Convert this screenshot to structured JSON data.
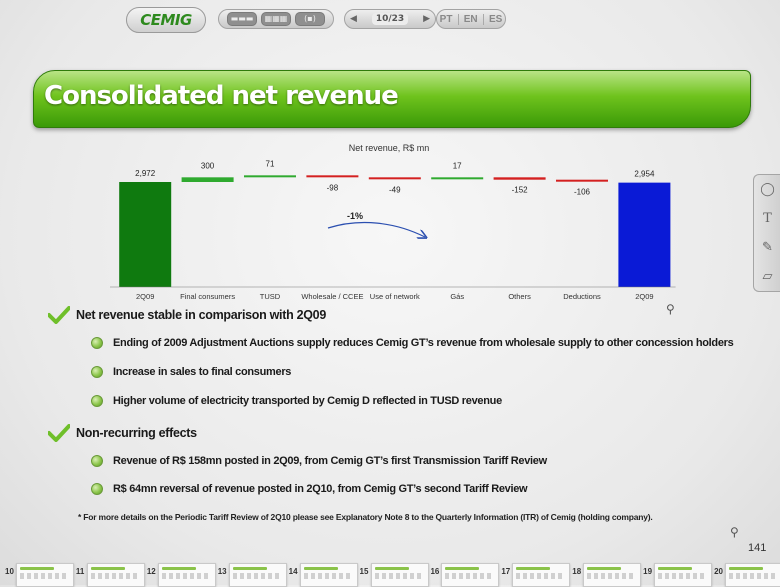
{
  "toolbar": {
    "logo_text": "CEMIG",
    "view_buttons": [
      "▬▬▬",
      "▦▦▦",
      "(▪)"
    ],
    "prev_icon": "◀",
    "next_icon": "▶",
    "page_indicator": "10/23",
    "languages": [
      "PT",
      "EN",
      "ES"
    ]
  },
  "title": "Consolidated net revenue",
  "chart_data": {
    "type": "waterfall",
    "title": "Net revenue, R$ mn",
    "categories": [
      "2Q09",
      "Final consumers",
      "TUSD",
      "Wholesale / CCEE",
      "Use of network",
      "Gás",
      "Others",
      "Deductions",
      "2Q09"
    ],
    "values": [
      2972,
      300,
      71,
      -98,
      -49,
      17,
      -152,
      -106,
      2954
    ],
    "value_labels": [
      "2,972",
      "300",
      "71",
      "-98",
      "-49",
      "17",
      "-152",
      "-106",
      "2,954"
    ],
    "kinds": [
      "total",
      "delta",
      "delta",
      "delta",
      "delta",
      "delta",
      "delta",
      "delta",
      "total"
    ],
    "annotation": "-1%",
    "colors": {
      "start_total": "#0f7a0f",
      "end_total": "#0a1ad6",
      "positive": "#2faa2f",
      "negative": "#d42020"
    }
  },
  "bullets": [
    {
      "text": "Net revenue stable in comparison with 2Q09",
      "sub": [
        "Ending of 2009 Adjustment Auctions supply reduces Cemig GT’s revenue from wholesale supply to other concession holders",
        "Increase in sales to final consumers",
        "Higher volume of electricity transported by Cemig D reflected in TUSD revenue"
      ]
    },
    {
      "text": "Non-recurring effects",
      "sub": [
        "Revenue of R$ 158mn posted in 2Q09, from Cemig GT’s first Transmission Tariff Review",
        "R$ 64mn reversal of revenue posted in 2Q10, from Cemig GT’s second Tariff Review"
      ]
    }
  ],
  "footnote": "* For more details on the Periodic Tariff Review of 2Q10 please see Explanatory Note 8 to the Quarterly Information (ITR) of Cemig (holding company).",
  "page_number": "141",
  "tools": [
    "lasso-icon",
    "text-icon",
    "pen-icon",
    "eraser-icon"
  ],
  "tool_glyphs": [
    "◯",
    "T",
    "✎",
    "▱"
  ],
  "zoom_icon": "⚲",
  "thumbnails": [
    "10",
    "11",
    "12",
    "13",
    "14",
    "15",
    "16",
    "17",
    "18",
    "19",
    "20"
  ]
}
